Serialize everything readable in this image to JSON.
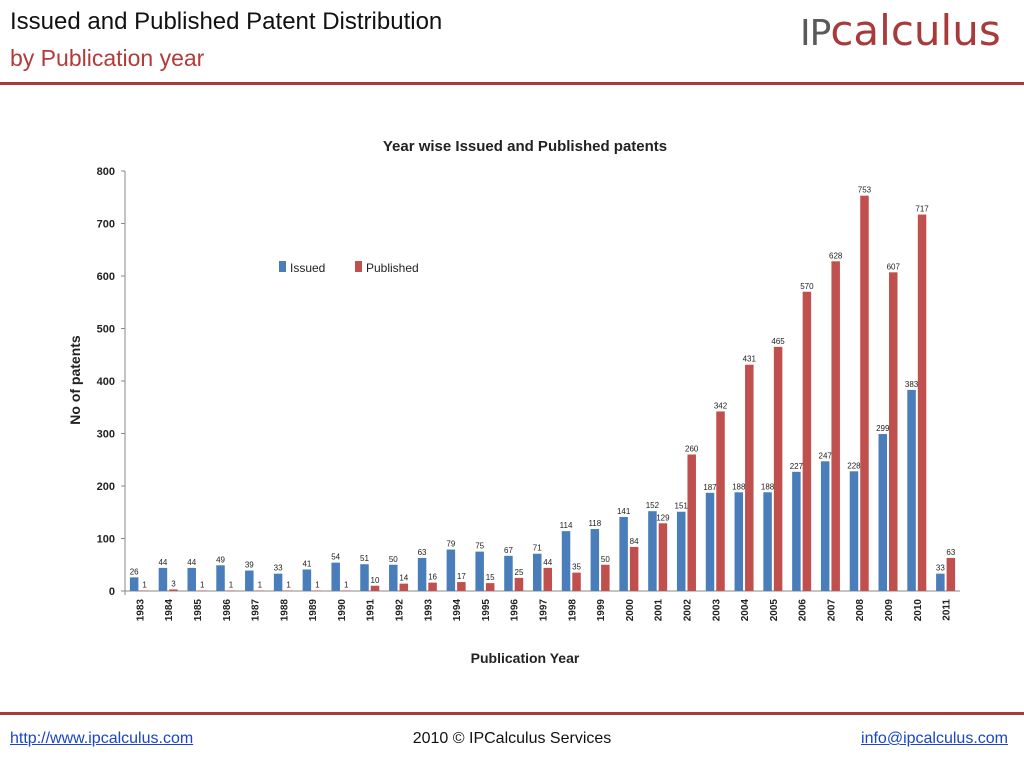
{
  "slide": {
    "title": "Issued and Published Patent Distribution",
    "subtitle": "by Publication year",
    "logo_ip": "IP",
    "logo_calc": "calculus"
  },
  "footer": {
    "left_link": "http://www.ipcalculus.com",
    "center": "2010 © IPCalculus Services",
    "right_link": "info@ipcalculus.com"
  },
  "colors": {
    "accent": "#a83a3a",
    "issued": "#4a7ebb",
    "published": "#c0504d"
  },
  "chart_data": {
    "type": "bar",
    "title": "Year wise Issued and Published patents",
    "xlabel": "Publication Year",
    "ylabel": "No of patents",
    "ylim": [
      0,
      800
    ],
    "yticks": [
      0,
      100,
      200,
      300,
      400,
      500,
      600,
      700,
      800
    ],
    "grid": false,
    "legend": "top-left",
    "categories": [
      "1983",
      "1984",
      "1985",
      "1986",
      "1987",
      "1988",
      "1989",
      "1990",
      "1991",
      "1992",
      "1993",
      "1994",
      "1995",
      "1996",
      "1997",
      "1998",
      "1999",
      "2000",
      "2001",
      "2002",
      "2003",
      "2004",
      "2005",
      "2006",
      "2007",
      "2008",
      "2009",
      "2010",
      "2011"
    ],
    "series": [
      {
        "name": "Issued",
        "values": [
          26,
          44,
          44,
          49,
          39,
          33,
          41,
          54,
          51,
          50,
          63,
          79,
          75,
          67,
          71,
          114,
          118,
          141,
          152,
          151,
          187,
          188,
          188,
          227,
          247,
          228,
          299,
          383,
          33
        ]
      },
      {
        "name": "Published",
        "values": [
          1,
          3,
          1,
          1,
          1,
          1,
          1,
          1,
          10,
          14,
          16,
          17,
          15,
          25,
          44,
          35,
          50,
          84,
          129,
          260,
          342,
          431,
          465,
          570,
          628,
          753,
          607,
          717,
          63
        ]
      }
    ]
  }
}
